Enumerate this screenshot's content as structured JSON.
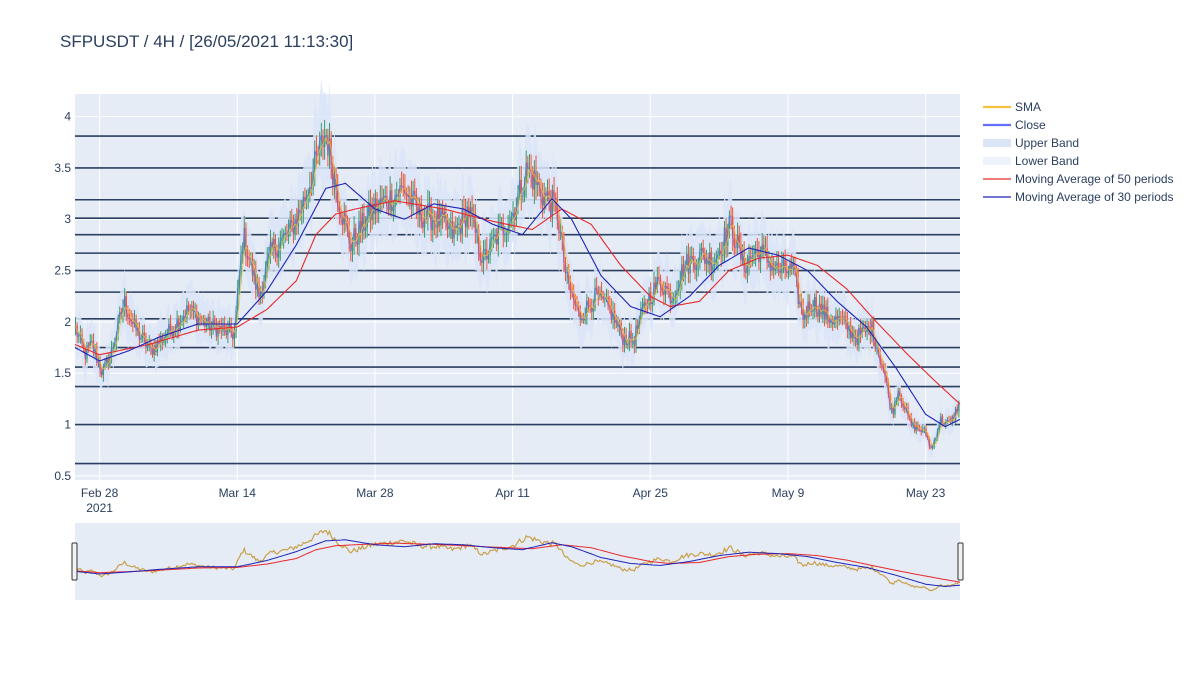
{
  "title": "SFPUSDT / 4H / [26/05/2021 11:13:30]",
  "colors": {
    "plot_bg": "#e5ecf6",
    "grid": "#ffffff",
    "level_line": "#2a3f5f",
    "increasing": "#3d9970",
    "decreasing": "#ef553b",
    "sma": "#f4c23f",
    "close": "#636efa",
    "band_fill": "#dbe5f8",
    "ma50": "#e8292b",
    "ma30": "#1f24b8"
  },
  "legend": [
    {
      "name": "SMA",
      "color": "#f4c23f",
      "style": "line"
    },
    {
      "name": "Close",
      "color": "#636efa",
      "style": "line"
    },
    {
      "name": "Upper Band",
      "color": "#dbe5f8",
      "style": "band"
    },
    {
      "name": "Lower Band",
      "color": "#eef2fb",
      "style": "band"
    },
    {
      "name": "Moving Average of 50 periods",
      "color": "#e8292b",
      "style": "thin"
    },
    {
      "name": "Moving Average of 30 periods",
      "color": "#1f24b8",
      "style": "thin"
    }
  ],
  "chart_data": {
    "type": "candlestick",
    "x_ticks": [
      {
        "label": "Feb 28",
        "sublabel": "2021",
        "day": 0
      },
      {
        "label": "Mar 14",
        "sublabel": "",
        "day": 14
      },
      {
        "label": "Mar 28",
        "sublabel": "",
        "day": 28
      },
      {
        "label": "Apr 11",
        "sublabel": "",
        "day": 42
      },
      {
        "label": "Apr 25",
        "sublabel": "",
        "day": 56
      },
      {
        "label": "May 9",
        "sublabel": "",
        "day": 70
      },
      {
        "label": "May 23",
        "sublabel": "",
        "day": 84
      }
    ],
    "x_range_days": [
      -2.5,
      87.5
    ],
    "y_ticks": [
      0.5,
      1,
      1.5,
      2,
      2.5,
      3,
      3.5,
      4
    ],
    "ylim": [
      0.46,
      4.22
    ],
    "horizontal_levels": [
      3.81,
      3.5,
      3.19,
      3.01,
      2.85,
      2.67,
      2.5,
      2.29,
      2.03,
      1.75,
      1.56,
      1.37,
      1.0,
      0.62
    ],
    "close_anchors": [
      [
        -2.5,
        1.95
      ],
      [
        -1.5,
        1.68
      ],
      [
        -0.8,
        1.78
      ],
      [
        0.3,
        1.5
      ],
      [
        1.2,
        1.7
      ],
      [
        2.5,
        2.2
      ],
      [
        3.5,
        1.95
      ],
      [
        5.2,
        1.72
      ],
      [
        7,
        1.9
      ],
      [
        9,
        2.12
      ],
      [
        11,
        1.97
      ],
      [
        13.7,
        1.88
      ],
      [
        14.6,
        2.85
      ],
      [
        16.2,
        2.25
      ],
      [
        17.5,
        2.7
      ],
      [
        19.2,
        2.85
      ],
      [
        20.5,
        3.1
      ],
      [
        22,
        3.55
      ],
      [
        23,
        3.85
      ],
      [
        24.2,
        3.25
      ],
      [
        25.5,
        2.75
      ],
      [
        26.5,
        2.9
      ],
      [
        27.8,
        3.1
      ],
      [
        29.5,
        3.2
      ],
      [
        31,
        3.3
      ],
      [
        32.5,
        3.05
      ],
      [
        34.5,
        3.0
      ],
      [
        36,
        2.85
      ],
      [
        37.5,
        3.1
      ],
      [
        39,
        2.6
      ],
      [
        40.5,
        2.85
      ],
      [
        42,
        3.05
      ],
      [
        43.5,
        3.5
      ],
      [
        45,
        3.25
      ],
      [
        46.5,
        3.1
      ],
      [
        47.5,
        2.4
      ],
      [
        48.8,
        2.05
      ],
      [
        50.5,
        2.25
      ],
      [
        52,
        2.1
      ],
      [
        53.2,
        1.85
      ],
      [
        54.3,
        1.82
      ],
      [
        55.6,
        2.2
      ],
      [
        57,
        2.4
      ],
      [
        58.2,
        2.25
      ],
      [
        59.5,
        2.55
      ],
      [
        61,
        2.65
      ],
      [
        62.5,
        2.6
      ],
      [
        64.2,
        2.95
      ],
      [
        65.5,
        2.55
      ],
      [
        67,
        2.7
      ],
      [
        69,
        2.5
      ],
      [
        70.5,
        2.5
      ],
      [
        71.5,
        2.05
      ],
      [
        72.5,
        2.2
      ],
      [
        74,
        2.05
      ],
      [
        75.5,
        2.0
      ],
      [
        77,
        1.85
      ],
      [
        78.5,
        1.95
      ],
      [
        79.7,
        1.55
      ],
      [
        80.6,
        1.1
      ],
      [
        81.2,
        1.35
      ],
      [
        82.5,
        1.0
      ],
      [
        84,
        0.92
      ],
      [
        84.6,
        0.75
      ],
      [
        85.5,
        1.05
      ],
      [
        86.5,
        1.0
      ],
      [
        87.5,
        1.22
      ]
    ],
    "ma50_anchors": [
      [
        -2.5,
        1.78
      ],
      [
        0,
        1.68
      ],
      [
        5,
        1.78
      ],
      [
        10,
        1.92
      ],
      [
        14,
        1.95
      ],
      [
        17,
        2.12
      ],
      [
        20,
        2.4
      ],
      [
        22,
        2.85
      ],
      [
        24,
        3.05
      ],
      [
        26,
        3.1
      ],
      [
        30,
        3.18
      ],
      [
        35,
        3.1
      ],
      [
        40,
        2.98
      ],
      [
        44,
        2.9
      ],
      [
        47,
        3.1
      ],
      [
        50,
        2.95
      ],
      [
        53,
        2.55
      ],
      [
        56,
        2.25
      ],
      [
        58,
        2.15
      ],
      [
        61,
        2.2
      ],
      [
        64,
        2.5
      ],
      [
        67,
        2.62
      ],
      [
        70,
        2.65
      ],
      [
        73,
        2.55
      ],
      [
        76,
        2.32
      ],
      [
        79,
        2.0
      ],
      [
        82,
        1.7
      ],
      [
        85,
        1.42
      ],
      [
        87.5,
        1.2
      ]
    ],
    "ma30_anchors": [
      [
        -2.5,
        1.75
      ],
      [
        0,
        1.62
      ],
      [
        3,
        1.72
      ],
      [
        6,
        1.85
      ],
      [
        10,
        1.98
      ],
      [
        14,
        1.98
      ],
      [
        17,
        2.3
      ],
      [
        20,
        2.75
      ],
      [
        23,
        3.3
      ],
      [
        25,
        3.35
      ],
      [
        28,
        3.1
      ],
      [
        31,
        3.0
      ],
      [
        34,
        3.15
      ],
      [
        37,
        3.1
      ],
      [
        40,
        2.95
      ],
      [
        43,
        2.85
      ],
      [
        46,
        3.2
      ],
      [
        48,
        3.0
      ],
      [
        51,
        2.45
      ],
      [
        54,
        2.15
      ],
      [
        57,
        2.05
      ],
      [
        60,
        2.25
      ],
      [
        63,
        2.55
      ],
      [
        66,
        2.72
      ],
      [
        69,
        2.65
      ],
      [
        72,
        2.5
      ],
      [
        75,
        2.2
      ],
      [
        78,
        1.95
      ],
      [
        81,
        1.55
      ],
      [
        84,
        1.1
      ],
      [
        86,
        0.98
      ],
      [
        87.5,
        1.05
      ]
    ]
  }
}
